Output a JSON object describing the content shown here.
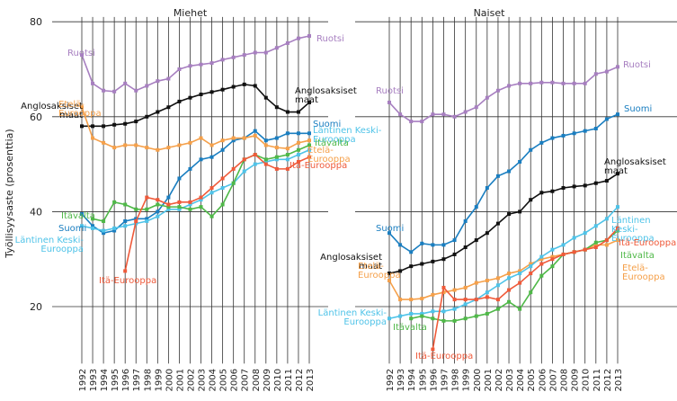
{
  "chart_data": [
    {
      "type": "line",
      "title": "Miehet",
      "ylabel": "Työllisyysaste (prosenttia)",
      "x": [
        1992,
        1993,
        1994,
        1995,
        1996,
        1997,
        1998,
        1999,
        2000,
        2001,
        2002,
        2003,
        2004,
        2005,
        2006,
        2007,
        2008,
        2009,
        2010,
        2011,
        2012,
        2013
      ],
      "xlim": [
        1992,
        2013
      ],
      "ylim": [
        8,
        81
      ],
      "yticks": [
        20,
        40,
        60,
        80
      ],
      "grid": true,
      "series": [
        {
          "name": "Ruotsi",
          "color": "#a77fc0",
          "values": [
            73,
            67,
            65.5,
            65.3,
            67,
            65.5,
            66.5,
            67.5,
            68,
            70,
            70.7,
            71,
            71.3,
            72,
            72.5,
            73,
            73.5,
            73.5,
            74.5,
            75.5,
            76.5,
            77
          ]
        },
        {
          "name": "Anglosaksiset\nmaat",
          "color": "#111111",
          "values": [
            58,
            58,
            58,
            58.3,
            58.5,
            59,
            60,
            61,
            62,
            63.2,
            64,
            64.7,
            65.2,
            65.7,
            66.3,
            66.8,
            66.5,
            64,
            62,
            61,
            61,
            63
          ]
        },
        {
          "name": "Suomi",
          "color": "#1a7ec0",
          "values": [
            39.5,
            37,
            35.5,
            36,
            38,
            38.5,
            38.5,
            40,
            43,
            47,
            49,
            51,
            51.5,
            53,
            55,
            55.5,
            57,
            55,
            55.5,
            56.5,
            56.5,
            56.5
          ]
        },
        {
          "name": "Etelä-\nEurooppa",
          "color": "#f5a04a",
          "values": [
            62,
            55.5,
            54.5,
            53.5,
            54,
            54,
            53.5,
            53,
            53.5,
            54,
            54.5,
            55.5,
            54,
            55,
            55.5,
            55.5,
            56,
            54,
            53.5,
            53.3,
            54.5,
            55
          ]
        },
        {
          "name": "Läntinen Keski-\nEurooppa",
          "color": "#4fc3e8",
          "values": [
            37,
            36.5,
            36,
            36.5,
            37,
            37.5,
            38,
            39,
            40.5,
            40.5,
            41.5,
            42.5,
            44,
            45,
            46,
            48.5,
            50,
            50.5,
            51,
            51,
            52,
            53
          ]
        },
        {
          "name": "Itävalta",
          "color": "#4fb848",
          "values": [
            null,
            38.5,
            38,
            42,
            41.5,
            40.5,
            40.5,
            41.5,
            41,
            41,
            40.5,
            41,
            39,
            41.5,
            46,
            51,
            52,
            51,
            51.5,
            52,
            53,
            54
          ]
        },
        {
          "name": "Itä-Eurooppa",
          "color": "#ef5a3a",
          "values": [
            null,
            null,
            null,
            null,
            27.5,
            38,
            43,
            42.5,
            41.5,
            42,
            42,
            43,
            45,
            47,
            49,
            51,
            52,
            50,
            49,
            49,
            50.5,
            51.5
          ]
        }
      ]
    },
    {
      "type": "line",
      "title": "Naiset",
      "x": [
        1992,
        1993,
        1994,
        1995,
        1996,
        1997,
        1998,
        1999,
        2000,
        2001,
        2002,
        2003,
        2004,
        2005,
        2006,
        2007,
        2008,
        2009,
        2010,
        2011,
        2012,
        2013
      ],
      "xlim": [
        1992,
        2013
      ],
      "ylim": [
        8,
        81
      ],
      "yticks": [
        20,
        40,
        60,
        80
      ],
      "grid": true,
      "series": [
        {
          "name": "Ruotsi",
          "color": "#a77fc0",
          "values": [
            63,
            60.5,
            59,
            59,
            60.5,
            60.5,
            60,
            61,
            62,
            64,
            65.5,
            66.5,
            67,
            67,
            67.2,
            67.2,
            67,
            67,
            67,
            69,
            69.5,
            70.5
          ]
        },
        {
          "name": "Suomi",
          "color": "#1a7ec0",
          "values": [
            35.5,
            33,
            31.5,
            33.3,
            33,
            33,
            34,
            38,
            41,
            45,
            47.5,
            48.5,
            50.5,
            53,
            54.5,
            55.5,
            56,
            56.5,
            57,
            57.5,
            59.5,
            60.5
          ]
        },
        {
          "name": "Anglosaksiset\nmaat",
          "color": "#111111",
          "values": [
            27,
            27.5,
            28.5,
            29,
            29.5,
            30,
            31,
            32.5,
            34,
            35.5,
            37.5,
            39.5,
            40,
            42.5,
            44,
            44.3,
            45,
            45.3,
            45.5,
            46,
            46.5,
            48
          ]
        },
        {
          "name": "Etelä-\nEurooppa",
          "color": "#f5a04a",
          "values": [
            25.5,
            21.5,
            21.5,
            21.7,
            22.5,
            23,
            23.5,
            24,
            25,
            25.5,
            26,
            27,
            27.5,
            29,
            30,
            30.5,
            31,
            31.5,
            32,
            33,
            33,
            34
          ]
        },
        {
          "name": "Läntinen Keski-\nEurooppa",
          "color": "#4fc3e8",
          "values": [
            17.5,
            18,
            18.5,
            18.5,
            19,
            19,
            19.5,
            20.5,
            21.5,
            23,
            24.5,
            26,
            27,
            28.5,
            30.5,
            32,
            33,
            34.5,
            35.5,
            37,
            38.5,
            41
          ]
        },
        {
          "name": "Itävalta",
          "color": "#4fb848",
          "values": [
            null,
            null,
            17.5,
            18,
            17.5,
            17,
            17,
            17.5,
            18,
            18.5,
            19.5,
            21,
            19.5,
            23,
            26.5,
            28.5,
            31,
            31.5,
            32,
            33.5,
            34,
            36
          ]
        },
        {
          "name": "Itä-Eurooppa",
          "color": "#ef5a3a",
          "values": [
            null,
            null,
            null,
            null,
            11,
            24,
            21.5,
            21.5,
            21.5,
            22,
            21.5,
            23.5,
            25,
            27,
            29,
            30,
            31,
            31.5,
            32,
            32.5,
            34,
            36.5
          ]
        }
      ]
    }
  ]
}
